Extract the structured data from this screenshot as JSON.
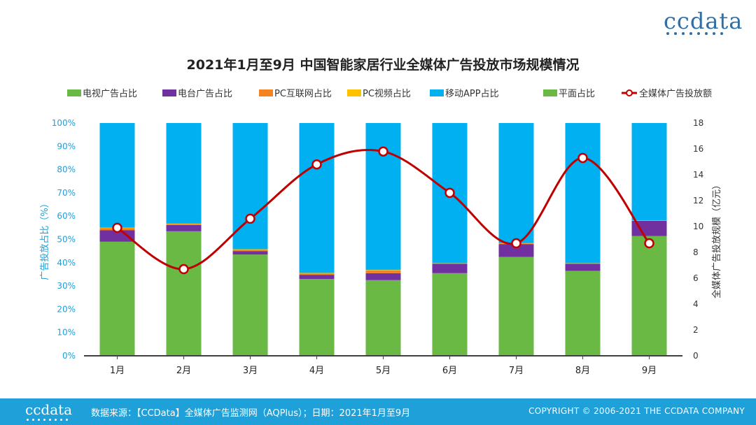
{
  "brand": {
    "name": "ccdata"
  },
  "chart_data": {
    "type": "bar",
    "stacked": true,
    "title": "2021年1月至9月  中国智能家居行业全媒体广告投放市场规模情况",
    "categories": [
      "1月",
      "2月",
      "3月",
      "4月",
      "5月",
      "6月",
      "7月",
      "8月",
      "9月"
    ],
    "ylabel_left": "广告投放占比（%）",
    "ylabel_right": "全媒体广告投放规模（亿元）",
    "ylim_left": [
      0,
      100
    ],
    "ylim_right": [
      0,
      18
    ],
    "yticks_left": [
      "0%",
      "10%",
      "20%",
      "30%",
      "40%",
      "50%",
      "60%",
      "70%",
      "80%",
      "90%",
      "100%"
    ],
    "yticks_right": [
      "0",
      "2",
      "4",
      "6",
      "8",
      "10",
      "12",
      "14",
      "16",
      "18"
    ],
    "series": [
      {
        "name": "平面占比",
        "color": "#6ab944",
        "values": [
          49,
          53.5,
          43.5,
          33,
          32.5,
          35.5,
          42.5,
          36.5,
          51.5
        ]
      },
      {
        "name": "电台广告占比",
        "color": "#7030a0",
        "values": [
          5,
          2.7,
          1.5,
          1.8,
          3,
          4,
          5.5,
          3,
          6.5
        ]
      },
      {
        "name": "PC互联网占比",
        "color": "#f5821f",
        "values": [
          0.8,
          0.4,
          0.6,
          0.6,
          1.2,
          0.2,
          0.3,
          0.2,
          0.1
        ]
      },
      {
        "name": "PC视频占比",
        "color": "#ffc000",
        "values": [
          0.3,
          0.2,
          0.2,
          0.2,
          0.2,
          0.1,
          0.1,
          0.1,
          0.1
        ]
      },
      {
        "name": "移动APP占比",
        "color": "#00b0f0",
        "values": [
          44.9,
          43.2,
          54.2,
          64.4,
          63.1,
          60.2,
          51.6,
          60.2,
          41.8
        ]
      },
      {
        "name": "电视广告占比",
        "color": "#6ab944",
        "values": [
          0,
          0,
          0,
          0,
          0,
          0,
          0,
          0,
          0
        ]
      }
    ],
    "line": {
      "name": "全媒体广告投放额",
      "color": "#c00000",
      "values": [
        9.9,
        6.7,
        10.6,
        14.8,
        15.8,
        12.6,
        8.7,
        15.3,
        8.7
      ]
    },
    "legend": [
      "电视广告占比",
      "电台广告占比",
      "PC互联网占比",
      "PC视频占比",
      "移动APP占比",
      "平面占比",
      "全媒体广告投放额"
    ],
    "legend_position": "top"
  },
  "footer": {
    "logo": "ccdata",
    "source": "数据来源：【CCData】全媒体广告监测网（AQPlus）；日期：2021年1月至9月",
    "copyright": "COPYRIGHT © 2006-2021  THE CCDATA COMPANY"
  }
}
